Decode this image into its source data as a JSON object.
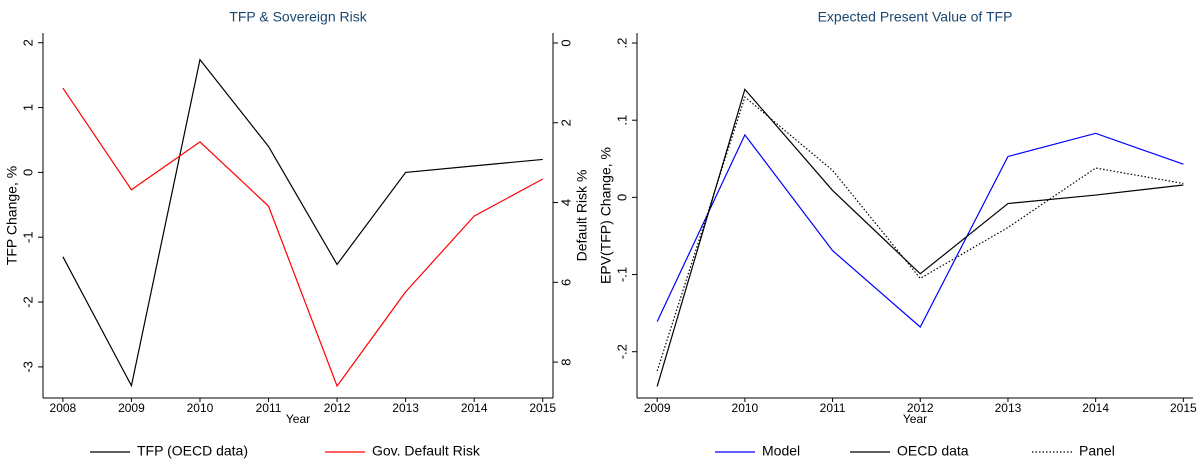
{
  "chart_data": [
    {
      "type": "line",
      "title": "TFP & Sovereign Risk",
      "xlabel": "Year",
      "ylabel": "TFP Change, %",
      "y2label": "Default Risk %",
      "x": [
        2008,
        2009,
        2010,
        2011,
        2012,
        2013,
        2014,
        2015
      ],
      "xlim": [
        2007.71,
        2015.15
      ],
      "xticks": [
        2008,
        2009,
        2010,
        2011,
        2012,
        2013,
        2014,
        2015
      ],
      "ylim": [
        -3.48,
        2.15
      ],
      "yticks": [
        -3,
        -2,
        -1,
        0,
        1,
        2
      ],
      "y2lim": [
        -0.25,
        8.9
      ],
      "y2_inverted": true,
      "y2ticks": [
        0,
        2,
        4,
        6,
        8
      ],
      "series": [
        {
          "name": "TFP (OECD data)",
          "color": "#000000",
          "values": [
            -1.3,
            -3.29,
            1.74,
            0.4,
            -1.42,
            0.0,
            0.1,
            0.2
          ]
        },
        {
          "name": "Gov. Default Risk",
          "color": "#ff0000",
          "axis": "y2",
          "values": [
            1.13,
            3.68,
            2.48,
            4.09,
            8.6,
            6.24,
            4.34,
            3.41
          ]
        }
      ]
    },
    {
      "type": "line",
      "title": "Expected Present Value of TFP",
      "xlabel": "Year",
      "ylabel": "EPV(TFP) Change, %",
      "x": [
        2009,
        2010,
        2011,
        2012,
        2013,
        2014,
        2015
      ],
      "xlim": [
        2008.77,
        2015.11
      ],
      "xticks": [
        2009,
        2010,
        2011,
        2012,
        2013,
        2014,
        2015
      ],
      "ylim": [
        -0.26,
        0.213
      ],
      "yticks": [
        {
          "value": -0.2,
          "label": "-.2"
        },
        {
          "value": -0.1,
          "label": "-.1"
        },
        0,
        {
          "value": 0.1,
          "label": ".1"
        },
        {
          "value": 0.2,
          "label": ".2"
        }
      ],
      "series": [
        {
          "name": "Model",
          "color": "#0000ff",
          "values": [
            -0.161,
            0.081,
            -0.069,
            -0.168,
            0.053,
            0.083,
            0.043
          ]
        },
        {
          "name": "OECD data",
          "color": "#000000",
          "values": [
            -0.245,
            0.14,
            0.009,
            -0.099,
            -0.008,
            0.003,
            0.016
          ]
        },
        {
          "name": "Panel",
          "color": "#000000",
          "dash": "dotted",
          "values": [
            -0.225,
            0.13,
            0.035,
            -0.105,
            -0.039,
            0.038,
            0.018
          ]
        }
      ]
    }
  ]
}
